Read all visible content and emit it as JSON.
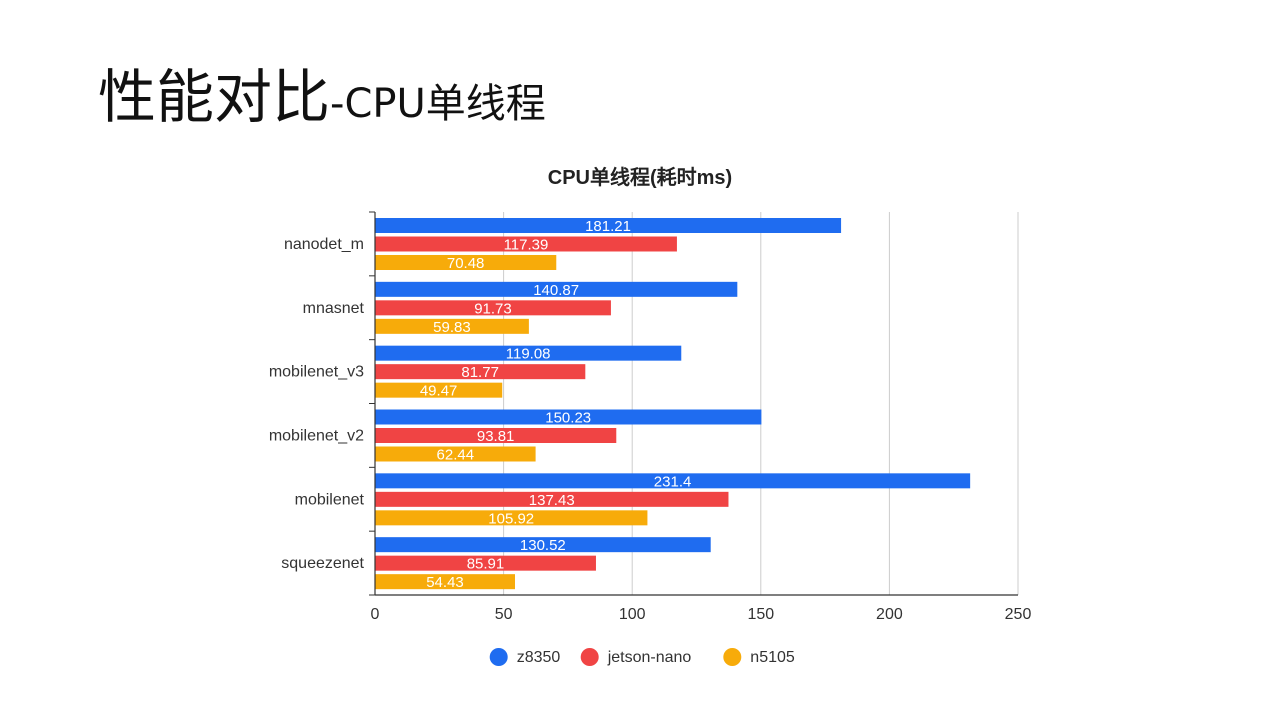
{
  "slide": {
    "title_main": "性能对比",
    "title_sub": "-CPU单线程"
  },
  "chart_data": {
    "type": "bar",
    "orientation": "horizontal",
    "title": "CPU单线程(耗时ms)",
    "categories": [
      "nanodet_m",
      "mnasnet",
      "mobilenet_v3",
      "mobilenet_v2",
      "mobilenet",
      "squeezenet"
    ],
    "series": [
      {
        "name": "z8350",
        "color": "#1f6cf0",
        "values": [
          181.21,
          140.87,
          119.08,
          150.23,
          231.4,
          130.52
        ]
      },
      {
        "name": "jetson-nano",
        "color": "#f04444",
        "values": [
          117.39,
          91.73,
          81.77,
          93.81,
          137.43,
          85.91
        ]
      },
      {
        "name": "n5105",
        "color": "#f7ab0a",
        "values": [
          70.48,
          59.83,
          49.47,
          62.44,
          105.92,
          54.43
        ]
      }
    ],
    "xticks": [
      0,
      50,
      100,
      150,
      200,
      250
    ],
    "xlim": [
      0,
      250
    ],
    "grid": true,
    "legend_position": "bottom"
  }
}
